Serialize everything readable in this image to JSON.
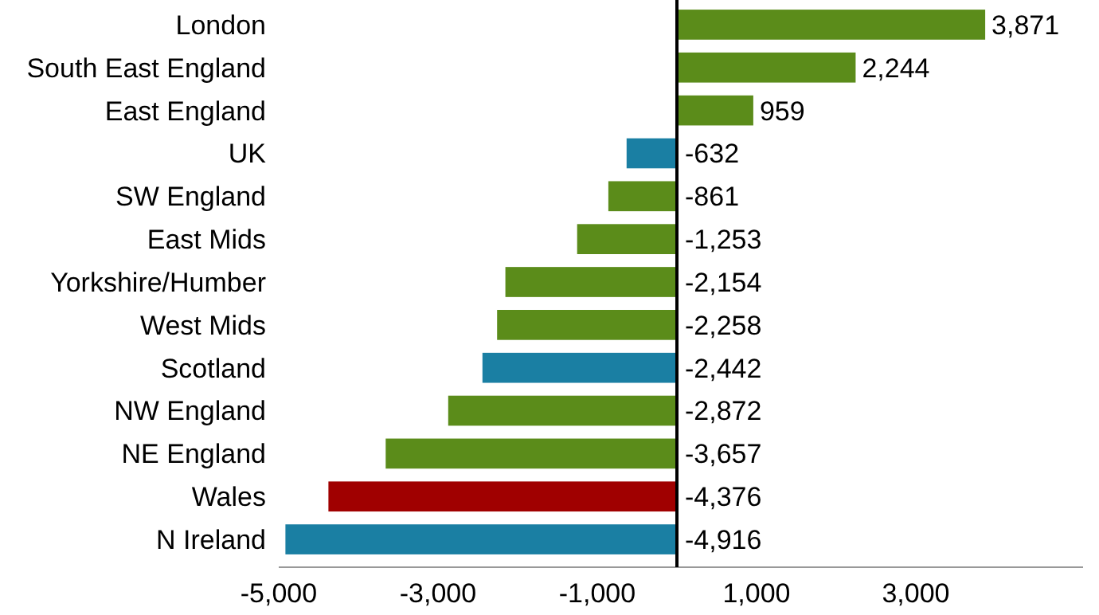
{
  "chart_data": {
    "type": "bar",
    "orientation": "horizontal",
    "categories": [
      "London",
      "South East England",
      "East England",
      "UK",
      "SW England",
      "East Mids",
      "Yorkshire/Humber",
      "West Mids",
      "Scotland",
      "NW England",
      "NE England",
      "Wales",
      "N Ireland"
    ],
    "values": [
      3871,
      2244,
      959,
      -632,
      -861,
      -1253,
      -2154,
      -2258,
      -2442,
      -2872,
      -3657,
      -4376,
      -4916
    ],
    "colors": [
      "#5b8c1a",
      "#5b8c1a",
      "#5b8c1a",
      "#1a7fa3",
      "#5b8c1a",
      "#5b8c1a",
      "#5b8c1a",
      "#5b8c1a",
      "#1a7fa3",
      "#5b8c1a",
      "#5b8c1a",
      "#a00000",
      "#1a7fa3"
    ],
    "value_labels": [
      "3,871",
      "2,244",
      "959",
      "-632",
      "-861",
      "-1,253",
      "-2,154",
      "-2,258",
      "-2,442",
      "-2,872",
      "-3,657",
      "-4,376",
      "-4,916"
    ],
    "xlim": [
      -5000,
      5100
    ],
    "xticks": [
      {
        "value": -5000,
        "label": "-5,000"
      },
      {
        "value": -3000,
        "label": "-3,000"
      },
      {
        "value": -1000,
        "label": "-1,000"
      },
      {
        "value": 1000,
        "label": "1,000"
      },
      {
        "value": 3000,
        "label": "3,000"
      }
    ],
    "grid": false
  }
}
